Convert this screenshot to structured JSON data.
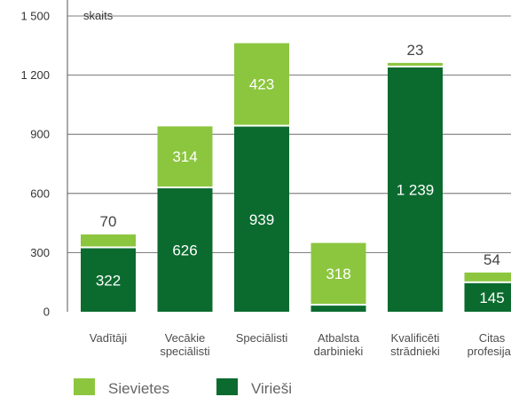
{
  "chart_data": {
    "type": "bar",
    "stacked": true,
    "unit_label": "skaits",
    "categories": [
      [
        "Vadītāji"
      ],
      [
        "Vecākie",
        "speciālisti"
      ],
      [
        "Speciālisti"
      ],
      [
        "Atbalsta",
        "darbinieki"
      ],
      [
        "Kvalificēti",
        "strādnieki"
      ],
      [
        "Citas",
        "profesijas"
      ]
    ],
    "series": [
      {
        "name": "Virieši",
        "color": "#0b6b2f",
        "values": [
          322,
          626,
          939,
          31,
          1239,
          145
        ],
        "labels": [
          "322",
          "626",
          "939",
          "",
          "1 239",
          "145"
        ]
      },
      {
        "name": "Sievietes",
        "color": "#8cc63f",
        "values": [
          70,
          314,
          423,
          318,
          23,
          54
        ],
        "labels": [
          "70",
          "314",
          "423",
          "318",
          "23",
          "54"
        ]
      }
    ],
    "y_ticks": [
      {
        "value": 0,
        "label": "0"
      },
      {
        "value": 300,
        "label": "300"
      },
      {
        "value": 600,
        "label": "600"
      },
      {
        "value": 900,
        "label": "900"
      },
      {
        "value": 1200,
        "label": "1 200"
      },
      {
        "value": 1500,
        "label": "1 500"
      }
    ],
    "ylim": [
      0,
      1500
    ],
    "grid": true,
    "legend_position": "bottom-left"
  }
}
